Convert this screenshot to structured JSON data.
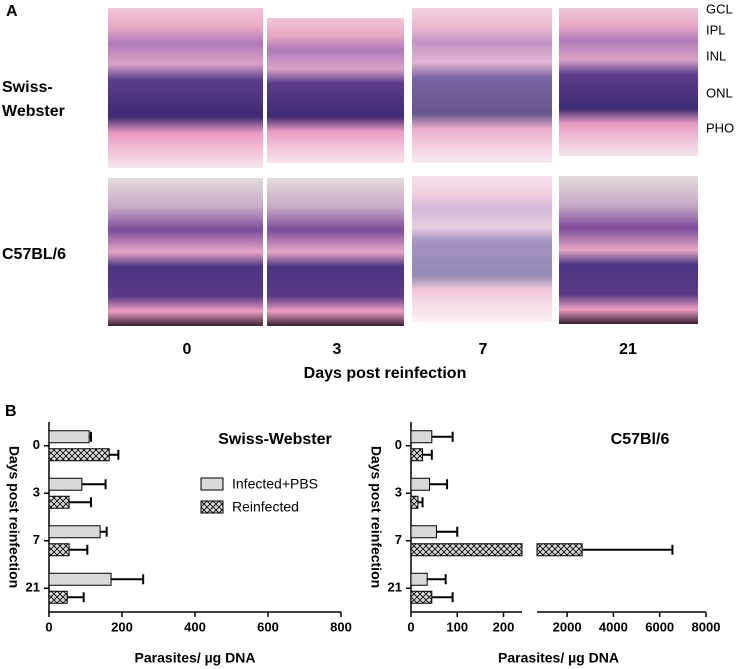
{
  "panel_a": {
    "label": "A",
    "rows": [
      "Swiss-\nWebster",
      "C57BL/6"
    ],
    "columns": [
      "0",
      "3",
      "7",
      "21"
    ],
    "xlabel": "Days post reinfection",
    "layers": [
      "GCL",
      "IPL",
      "INL",
      "ONL",
      "PHO"
    ]
  },
  "panel_b": {
    "label": "B"
  },
  "chart_data": [
    {
      "type": "hbar",
      "title": "Swiss-Webster",
      "xlabel": "Parasites/ µg DNA",
      "ylabel": "Days post reinfection",
      "categories": [
        "0",
        "3",
        "7",
        "21"
      ],
      "xlim": [
        0,
        800
      ],
      "xticks": [
        0,
        200,
        400,
        600,
        800
      ],
      "legend": "center",
      "series": [
        {
          "name": "Infected+PBS",
          "color": "#d9d9d9",
          "hatch": false,
          "values": [
            110,
            90,
            140,
            170
          ],
          "errors": [
            5,
            65,
            18,
            88
          ]
        },
        {
          "name": "Reinfected",
          "color": "#d9d9d9",
          "hatch": true,
          "values": [
            165,
            55,
            55,
            50
          ],
          "errors": [
            25,
            60,
            50,
            45
          ]
        }
      ]
    },
    {
      "type": "hbar",
      "title": "C57Bl/6",
      "xlabel": "Parasites/ µg DNA",
      "ylabel": "Days post reinfection",
      "categories": [
        "0",
        "3",
        "7",
        "21"
      ],
      "x_segments": [
        {
          "xlim": [
            0,
            240
          ],
          "xticks": [
            0,
            100,
            200
          ]
        },
        {
          "xlim": [
            700,
            8000
          ],
          "xticks": [
            2000,
            4000,
            6000,
            8000
          ]
        }
      ],
      "series": [
        {
          "name": "Infected+PBS",
          "color": "#d9d9d9",
          "hatch": false,
          "values": [
            45,
            40,
            55,
            35
          ],
          "errors": [
            45,
            38,
            45,
            40
          ]
        },
        {
          "name": "Reinfected",
          "color": "#d9d9d9",
          "hatch": true,
          "values": [
            25,
            15,
            2650,
            45
          ],
          "errors": [
            20,
            10,
            3900,
            45
          ]
        }
      ]
    }
  ]
}
